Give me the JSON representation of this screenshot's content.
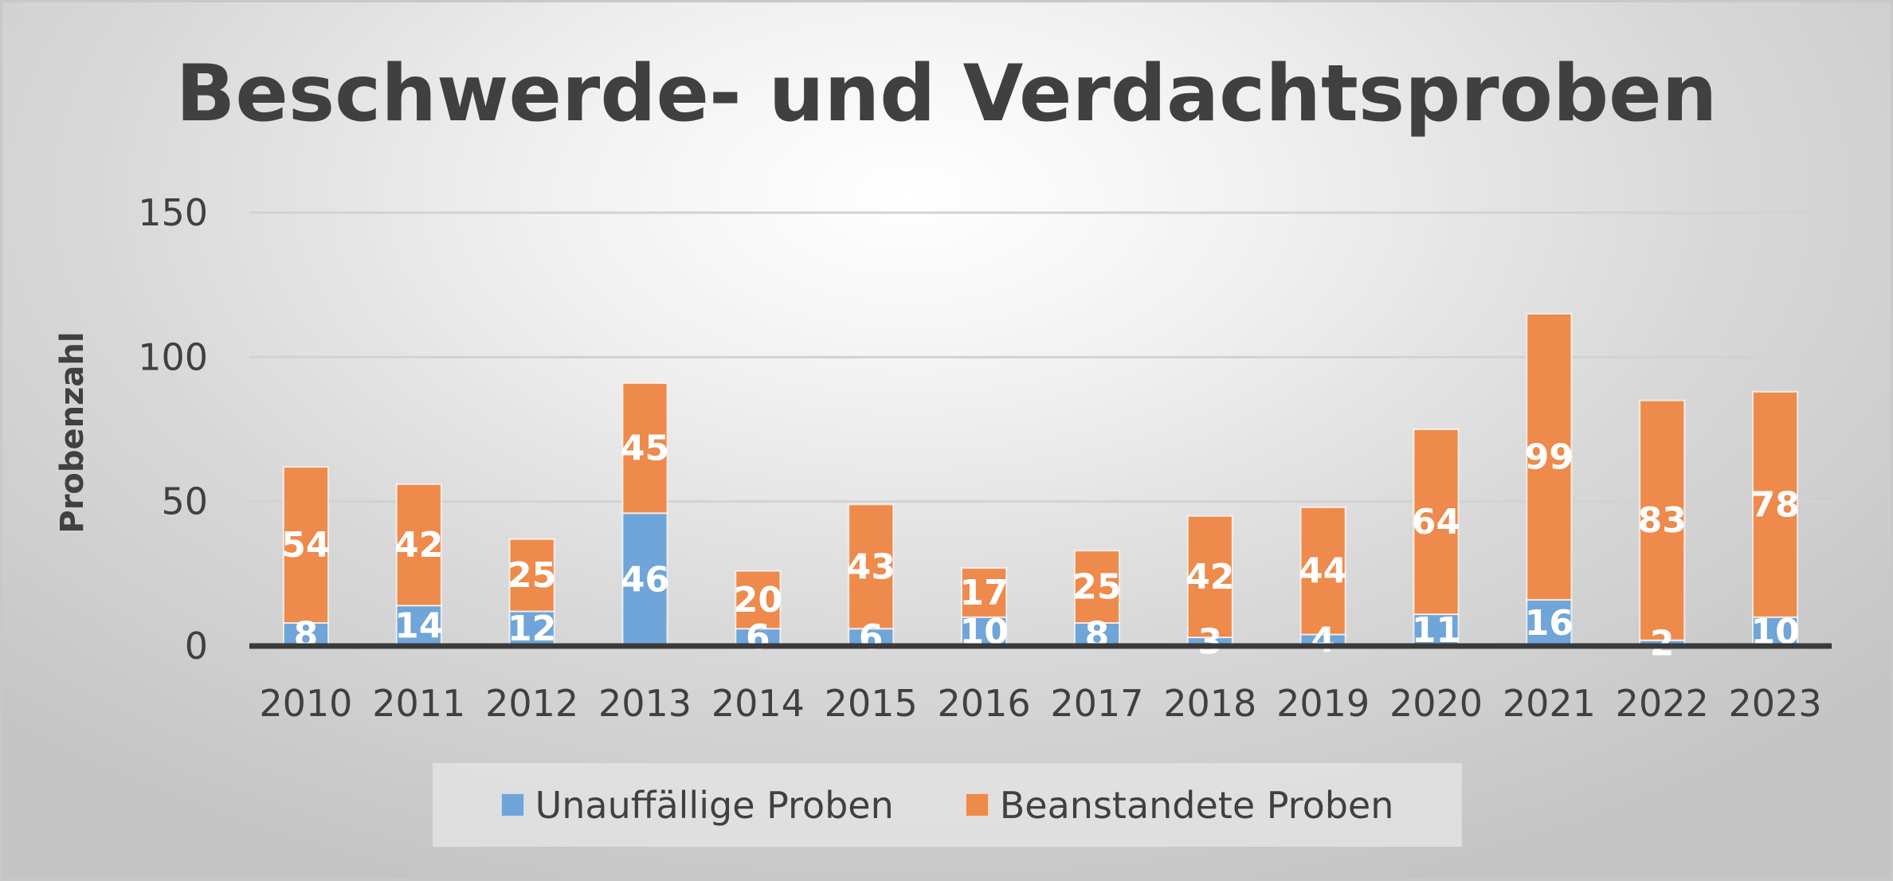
{
  "chart_data": {
    "type": "bar",
    "stacked": true,
    "title": "Beschwerde- und Verdachtsproben",
    "xlabel": "",
    "ylabel": "Probenzahl",
    "ylim": [
      0,
      150
    ],
    "yticks": [
      "0",
      "50",
      "100",
      "150"
    ],
    "grid": true,
    "legend_position": "bottom",
    "categories": [
      "2010",
      "2011",
      "2012",
      "2013",
      "2014",
      "2015",
      "2016",
      "2017",
      "2018",
      "2019",
      "2020",
      "2021",
      "2022",
      "2023"
    ],
    "series": [
      {
        "name": "Unauffällige Proben",
        "color": "#6fa5d8",
        "values": [
          8,
          14,
          12,
          46,
          6,
          6,
          10,
          8,
          3,
          4,
          11,
          16,
          2,
          10
        ]
      },
      {
        "name": "Beanstandete Proben",
        "color": "#ee8a4b",
        "values": [
          54,
          42,
          25,
          45,
          20,
          43,
          17,
          25,
          42,
          44,
          64,
          99,
          83,
          78
        ]
      }
    ]
  }
}
